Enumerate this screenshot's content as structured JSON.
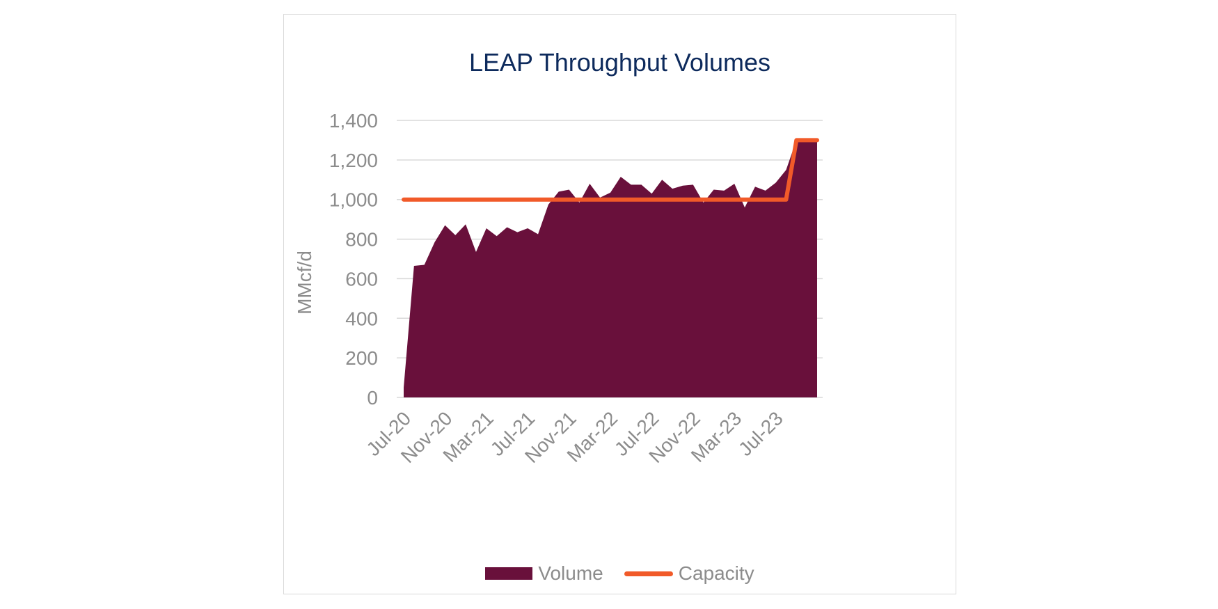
{
  "chart_data": {
    "type": "area",
    "title": "LEAP Throughput Volumes",
    "ylabel": "MMcf/d",
    "xlabel": "",
    "ylim": [
      0,
      1400
    ],
    "yticks": [
      0,
      200,
      400,
      600,
      800,
      1000,
      1200,
      1400
    ],
    "yticklabels": [
      "0",
      "200",
      "400",
      "600",
      "800",
      "1,000",
      "1,200",
      "1,400"
    ],
    "grid": true,
    "legend_position": "bottom",
    "x": [
      "Jul-20",
      "Aug-20",
      "Sep-20",
      "Oct-20",
      "Nov-20",
      "Dec-20",
      "Jan-21",
      "Feb-21",
      "Mar-21",
      "Apr-21",
      "May-21",
      "Jun-21",
      "Jul-21",
      "Aug-21",
      "Sep-21",
      "Oct-21",
      "Nov-21",
      "Dec-21",
      "Jan-22",
      "Feb-22",
      "Mar-22",
      "Apr-22",
      "May-22",
      "Jun-22",
      "Jul-22",
      "Aug-22",
      "Sep-22",
      "Oct-22",
      "Nov-22",
      "Dec-22",
      "Jan-23",
      "Feb-23",
      "Mar-23",
      "Apr-23",
      "May-23",
      "Jun-23",
      "Jul-23",
      "Aug-23",
      "Sep-23",
      "Oct-23",
      "Nov-23"
    ],
    "xticklabels": [
      "Jul-20",
      "Nov-20",
      "Mar-21",
      "Jul-21",
      "Nov-21",
      "Mar-22",
      "Jul-22",
      "Nov-22",
      "Mar-23",
      "Jul-23"
    ],
    "series": [
      {
        "name": "Volume",
        "type": "area",
        "color": "#69103b",
        "values": [
          50,
          665,
          670,
          785,
          870,
          820,
          875,
          735,
          855,
          815,
          860,
          835,
          855,
          825,
          975,
          1040,
          1050,
          985,
          1080,
          1010,
          1035,
          1115,
          1075,
          1075,
          1030,
          1100,
          1055,
          1070,
          1075,
          985,
          1050,
          1045,
          1080,
          960,
          1065,
          1045,
          1085,
          1150,
          1300,
          1300,
          1300
        ]
      },
      {
        "name": "Capacity",
        "type": "line",
        "color": "#f15a29",
        "values": [
          1000,
          1000,
          1000,
          1000,
          1000,
          1000,
          1000,
          1000,
          1000,
          1000,
          1000,
          1000,
          1000,
          1000,
          1000,
          1000,
          1000,
          1000,
          1000,
          1000,
          1000,
          1000,
          1000,
          1000,
          1000,
          1000,
          1000,
          1000,
          1000,
          1000,
          1000,
          1000,
          1000,
          1000,
          1000,
          1000,
          1000,
          1000,
          1300,
          1300,
          1300
        ]
      }
    ]
  }
}
